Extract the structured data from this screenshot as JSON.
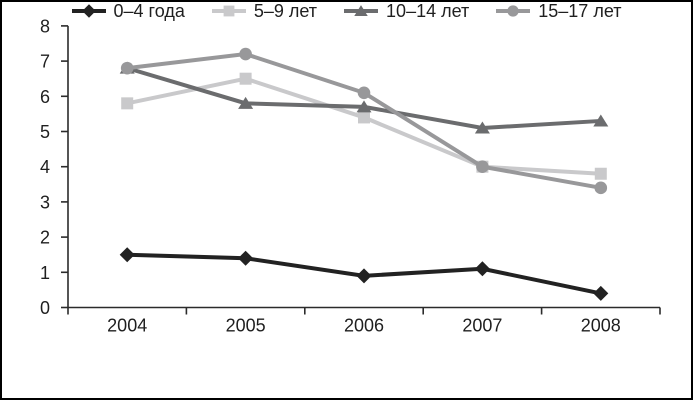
{
  "chart_data": {
    "type": "line",
    "title": "",
    "xlabel": "",
    "ylabel": "",
    "categories": [
      "2004",
      "2005",
      "2006",
      "2007",
      "2008"
    ],
    "series": [
      {
        "name": "0–4 года",
        "marker": "diamond",
        "color": "#222222",
        "values": [
          1.5,
          1.4,
          0.9,
          1.1,
          0.4
        ]
      },
      {
        "name": "5–9 лет",
        "marker": "square",
        "color": "#c9c9cb",
        "values": [
          5.8,
          6.5,
          5.4,
          4.0,
          3.8
        ]
      },
      {
        "name": "10–14 лет",
        "marker": "triangle",
        "color": "#6b6c6e",
        "values": [
          6.8,
          5.8,
          5.7,
          5.1,
          5.3
        ]
      },
      {
        "name": "15–17 лет",
        "marker": "circle",
        "color": "#98989a",
        "values": [
          6.8,
          7.2,
          6.1,
          4.0,
          3.4
        ]
      }
    ],
    "ylim": [
      0,
      8
    ],
    "ytick_step": 1,
    "yticks": [
      0,
      1,
      2,
      3,
      4,
      5,
      6,
      7,
      8
    ],
    "grid": false,
    "legend_position": "bottom"
  },
  "colors": {
    "background": "#ffffff",
    "frame_border": "#000000",
    "axis": "#2b2b2b",
    "tick_text": "#1f1f1f"
  }
}
